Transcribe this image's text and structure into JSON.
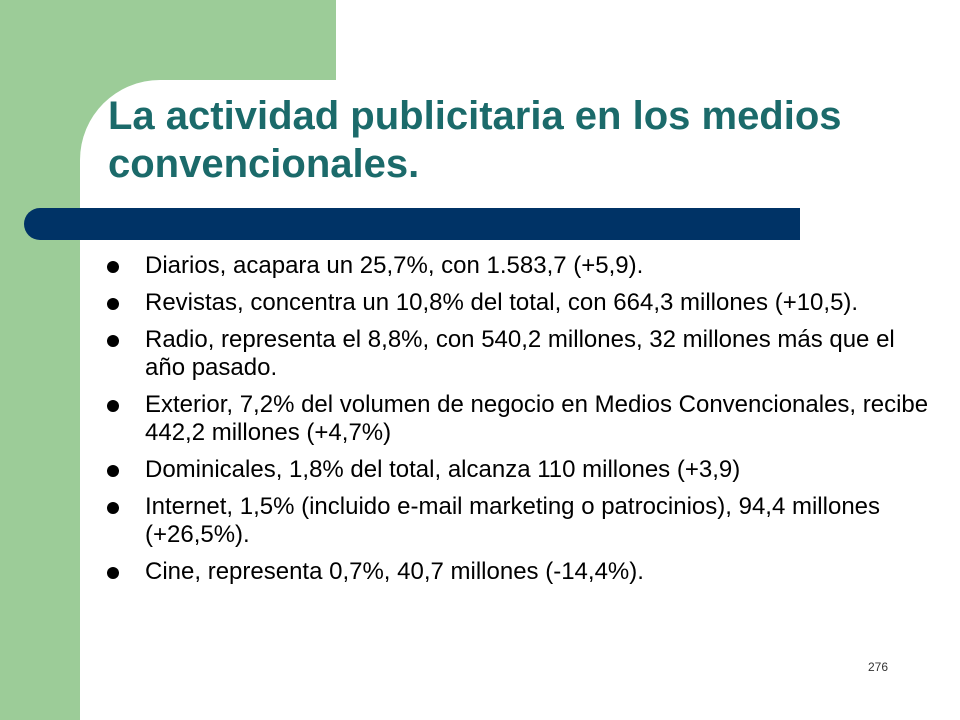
{
  "slide": {
    "title": "La actividad publicitaria en los medios convencionales.",
    "page_number": "276",
    "colors": {
      "title": "#1b6a6a",
      "accent_bar": "#003366",
      "side_block": "#9ccc98"
    },
    "bullets": [
      "Diarios, acapara un 25,7%, con 1.583,7 (+5,9).",
      "Revistas, concentra un 10,8% del total, con 664,3 millones (+10,5).",
      "Radio, representa el 8,8%, con 540,2 millones, 32 millones más que el año pasado.",
      "Exterior, 7,2% del volumen de negocio en Medios Convencionales, recibe 442,2 millones (+4,7%)",
      "Dominicales, 1,8% del total, alcanza 110 millones (+3,9)",
      "Internet, 1,5% (incluido e-mail marketing o patrocinios), 94,4 millones (+26,5%).",
      "Cine, representa 0,7%, 40,7 millones (-14,4%)."
    ]
  }
}
